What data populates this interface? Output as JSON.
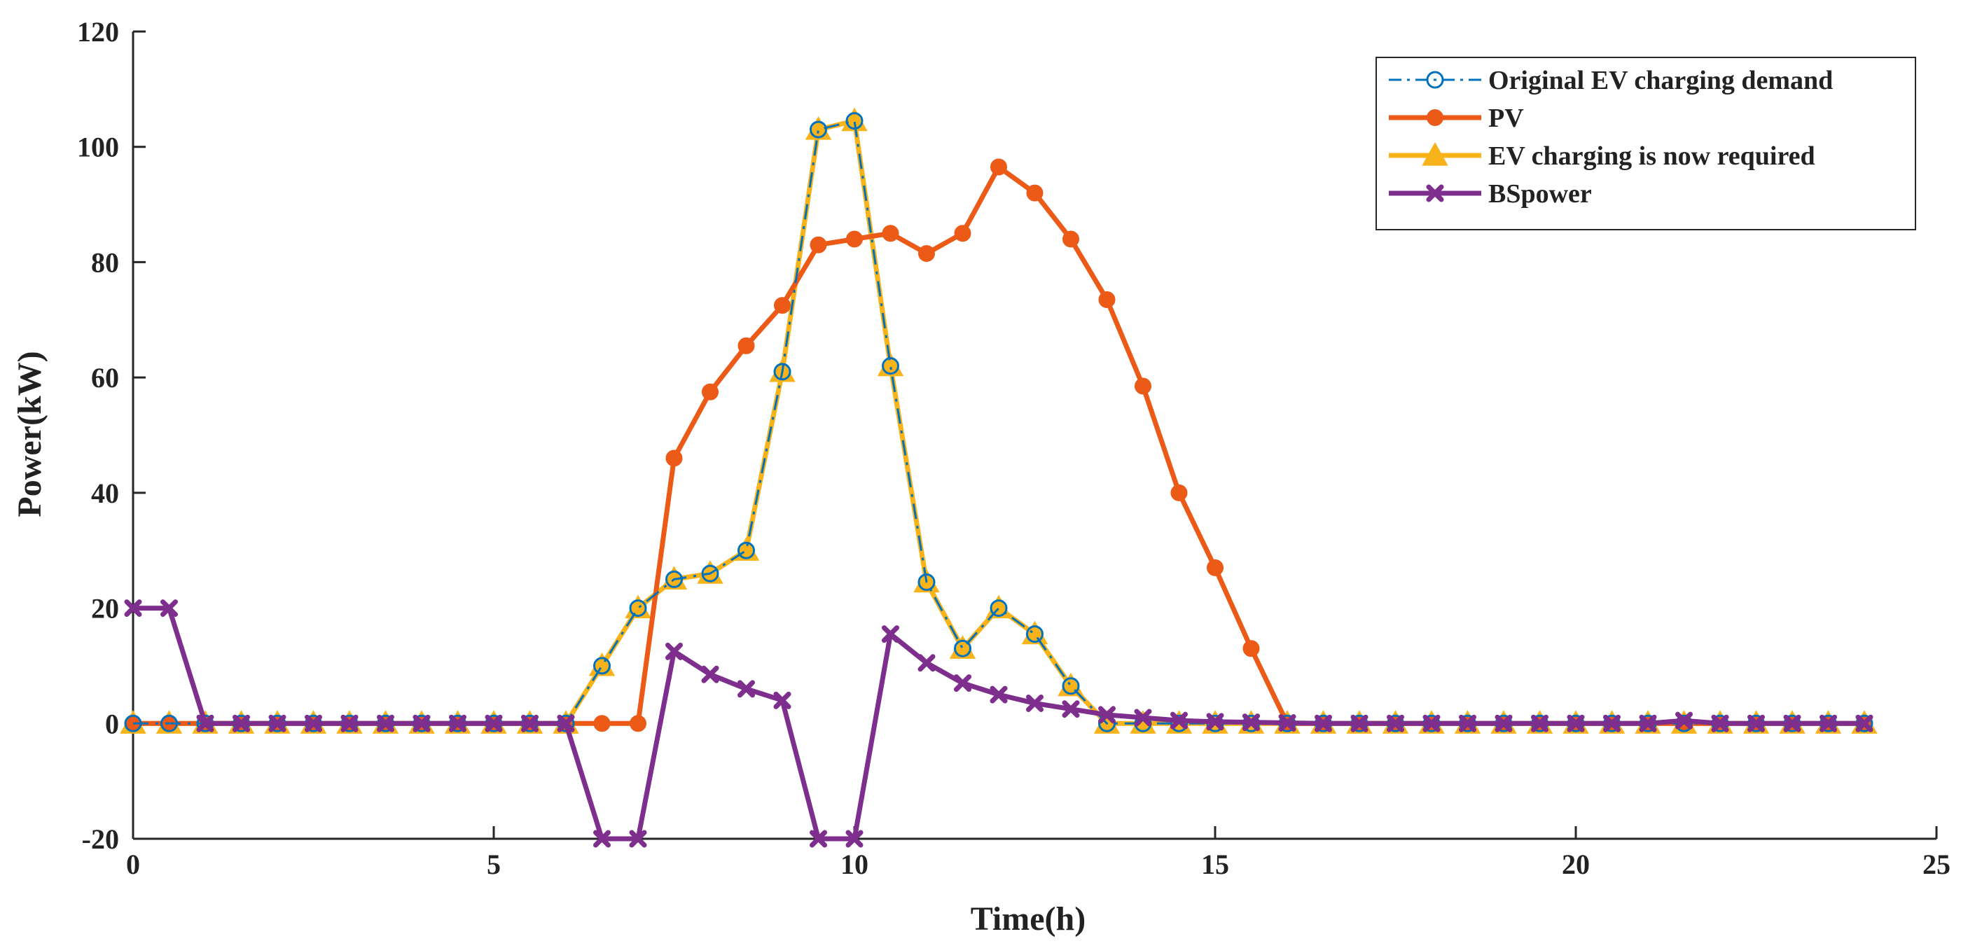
{
  "chart_data": {
    "type": "line",
    "title": "",
    "xlabel": "Time(h)",
    "ylabel": "Power(kW)",
    "xlim": [
      0,
      25
    ],
    "ylim": [
      -20,
      120
    ],
    "xticks": [
      0,
      5,
      10,
      15,
      20,
      25
    ],
    "yticks": [
      -20,
      0,
      20,
      40,
      60,
      80,
      100,
      120
    ],
    "grid": false,
    "legend_position": "top-right",
    "x": [
      0,
      0.5,
      1,
      1.5,
      2,
      2.5,
      3,
      3.5,
      4,
      4.5,
      5,
      5.5,
      6,
      6.5,
      7,
      7.5,
      8,
      8.5,
      9,
      9.5,
      10,
      10.5,
      11,
      11.5,
      12,
      12.5,
      13,
      13.5,
      14,
      14.5,
      15,
      15.5,
      16,
      16.5,
      17,
      17.5,
      18,
      18.5,
      19,
      19.5,
      20,
      20.5,
      21,
      21.5,
      22,
      22.5,
      23,
      23.5,
      24
    ],
    "series": [
      {
        "name": "Original EV charging demand",
        "color": "#0072BD",
        "style": "dash-dot",
        "marker": "circle",
        "values": [
          0,
          0,
          0,
          0,
          0,
          0,
          0,
          0,
          0,
          0,
          0,
          0,
          0,
          10,
          20,
          25,
          26,
          30,
          61,
          103,
          104.5,
          62,
          24.5,
          13,
          20,
          15.5,
          6.5,
          0,
          0,
          0,
          0,
          0,
          0,
          0,
          0,
          0,
          0,
          0,
          0,
          0,
          0,
          0,
          0,
          0,
          0,
          0,
          0,
          0,
          0
        ]
      },
      {
        "name": "PV",
        "color": "#EB5A17",
        "style": "solid",
        "marker": "filled-circle",
        "values": [
          0,
          0,
          0,
          0,
          0,
          0,
          0,
          0,
          0,
          0,
          0,
          0,
          0,
          0,
          0,
          46,
          57.5,
          65.5,
          72.5,
          83,
          84,
          85,
          81.5,
          85,
          96.5,
          92,
          84,
          73.5,
          58.5,
          40,
          27,
          13,
          0,
          0,
          0,
          0,
          0,
          0,
          0,
          0,
          0,
          0,
          0,
          0,
          0,
          0,
          0,
          0,
          0
        ]
      },
      {
        "name": "EV charging is now required",
        "color": "#F7B319",
        "style": "solid",
        "marker": "triangle",
        "values": [
          0,
          0,
          0,
          0,
          0,
          0,
          0,
          0,
          0,
          0,
          0,
          0,
          0,
          10,
          20,
          25,
          26,
          30,
          61,
          103,
          104.5,
          62,
          24.5,
          13,
          20,
          15.5,
          6.5,
          0,
          0,
          0,
          0,
          0,
          0,
          0,
          0,
          0,
          0,
          0,
          0,
          0,
          0,
          0,
          0,
          0,
          0,
          0,
          0,
          0,
          0
        ]
      },
      {
        "name": "BSpower",
        "color": "#7E2F8E",
        "style": "solid",
        "marker": "x-cross",
        "values": [
          20,
          20,
          0,
          0,
          0,
          0,
          0,
          0,
          0,
          0,
          0,
          0,
          0,
          -20,
          -20,
          12.5,
          8.5,
          6,
          4,
          -20,
          -20,
          15.5,
          10.5,
          7,
          5,
          3.5,
          2.5,
          1.5,
          1,
          0.5,
          0.3,
          0.2,
          0.1,
          0,
          0,
          0,
          0,
          0,
          0,
          0,
          0,
          0,
          0,
          0.5,
          0,
          0,
          0,
          0,
          0
        ]
      }
    ]
  }
}
